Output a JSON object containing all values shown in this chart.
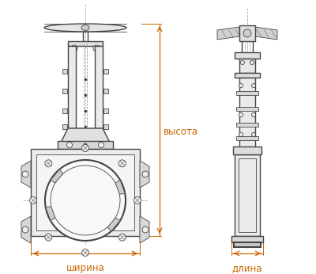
{
  "bg_color": "#ffffff",
  "line_color": "#444444",
  "dim_color": "#cc6600",
  "text_color": "#444444",
  "label_shirина": "ширина",
  "label_dlina": "длина",
  "label_vysota": "высота",
  "font_size_labels": 8.5,
  "fig_width": 4.0,
  "fig_height": 3.46,
  "dpi": 100
}
